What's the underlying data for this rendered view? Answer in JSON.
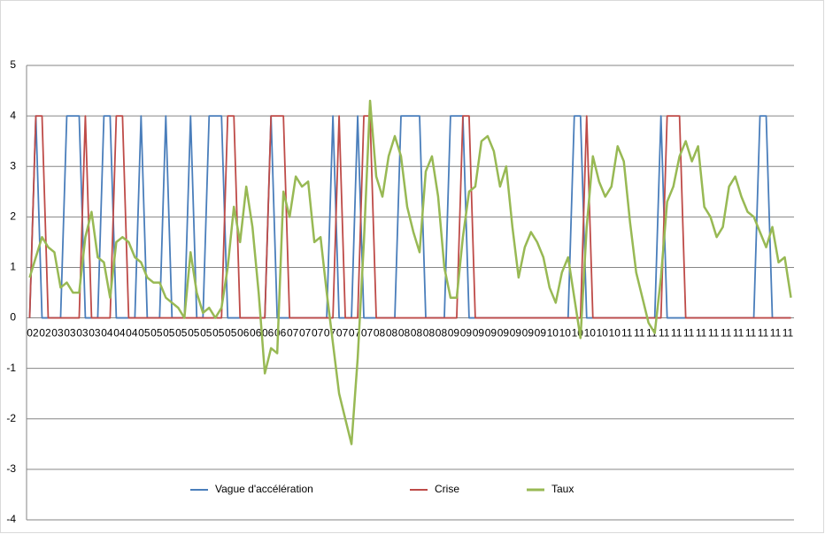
{
  "chart_data": {
    "type": "line",
    "categories": [
      "02",
      null,
      "02",
      null,
      "03",
      null,
      "03",
      null,
      "03",
      null,
      "03",
      null,
      "04",
      null,
      "04",
      null,
      "04",
      null,
      "05",
      null,
      "05",
      null,
      "05",
      null,
      "05",
      null,
      "05",
      null,
      "05",
      null,
      "05",
      null,
      "05",
      null,
      "06",
      null,
      "06",
      null,
      "06",
      null,
      "06",
      null,
      "07",
      null,
      "07",
      null,
      "07",
      null,
      "07",
      null,
      "07",
      null,
      "07",
      null,
      "07",
      null,
      "08",
      null,
      "08",
      null,
      "08",
      null,
      "08",
      null,
      "08",
      null,
      "08",
      null,
      "09",
      null,
      "09",
      null,
      "09",
      null,
      "09",
      null,
      "09",
      null,
      "09",
      null,
      "09",
      null,
      "09",
      null,
      "10",
      null,
      "10",
      null,
      "10",
      null,
      "10",
      null,
      "10",
      null,
      "10",
      null,
      "11",
      null,
      "11",
      null,
      "11",
      null,
      "11",
      null,
      "11",
      null,
      "11",
      null,
      "11",
      null,
      "11",
      null,
      "11",
      null,
      "11",
      null,
      "11",
      null,
      "11",
      null,
      "11",
      null,
      "11",
      null
    ],
    "series": [
      {
        "name": "Vague d'accélération",
        "color": "#4a7ebb",
        "values": [
          0,
          4,
          0,
          0,
          0,
          0,
          4,
          4,
          4,
          0,
          0,
          0,
          4,
          4,
          0,
          0,
          0,
          0,
          4,
          0,
          0,
          0,
          4,
          0,
          0,
          0,
          4,
          0,
          0,
          4,
          4,
          4,
          0,
          0,
          0,
          0,
          0,
          0,
          0,
          4,
          0,
          0,
          0,
          0,
          0,
          0,
          0,
          0,
          0,
          4,
          0,
          0,
          0,
          4,
          0,
          0,
          0,
          0,
          0,
          0,
          4,
          4,
          4,
          4,
          0,
          0,
          0,
          0,
          4,
          4,
          4,
          0,
          0,
          0,
          0,
          0,
          0,
          0,
          0,
          0,
          0,
          0,
          0,
          0,
          0,
          0,
          0,
          0,
          4,
          4,
          0,
          0,
          0,
          0,
          0,
          0,
          0,
          0,
          0,
          0,
          0,
          0,
          4,
          0,
          0,
          0,
          0,
          0,
          0,
          0,
          0,
          0,
          0,
          0,
          0,
          0,
          0,
          0,
          4,
          4,
          0,
          0,
          0,
          0
        ]
      },
      {
        "name": "Crise",
        "color": "#be4b48",
        "values": [
          0,
          4,
          4,
          0,
          0,
          0,
          0,
          0,
          0,
          4,
          0,
          0,
          0,
          0,
          4,
          4,
          0,
          0,
          0,
          0,
          0,
          0,
          0,
          0,
          0,
          0,
          0,
          0,
          0,
          0,
          0,
          0,
          4,
          4,
          0,
          0,
          0,
          0,
          0,
          4,
          4,
          4,
          0,
          0,
          0,
          0,
          0,
          0,
          0,
          0,
          4,
          0,
          0,
          0,
          4,
          4,
          0,
          0,
          0,
          0,
          0,
          0,
          0,
          0,
          0,
          0,
          0,
          0,
          0,
          0,
          4,
          4,
          0,
          0,
          0,
          0,
          0,
          0,
          0,
          0,
          0,
          0,
          0,
          0,
          0,
          0,
          0,
          0,
          0,
          0,
          4,
          0,
          0,
          0,
          0,
          0,
          0,
          0,
          0,
          0,
          0,
          0,
          0,
          4,
          4,
          4,
          0,
          0,
          0,
          0,
          0,
          0,
          0,
          0,
          0,
          0,
          0,
          0,
          0,
          0,
          0,
          0,
          0,
          0
        ]
      },
      {
        "name": "Taux",
        "color": "#98b954",
        "values": [
          0.8,
          1.2,
          1.6,
          1.4,
          1.3,
          0.6,
          0.7,
          0.5,
          0.5,
          1.6,
          2.1,
          1.2,
          1.1,
          0.4,
          1.5,
          1.6,
          1.5,
          1.2,
          1.1,
          0.8,
          0.7,
          0.7,
          0.4,
          0.3,
          0.2,
          0.0,
          1.3,
          0.5,
          0.1,
          0.2,
          0.0,
          0.2,
          1.0,
          2.2,
          1.5,
          2.6,
          1.8,
          0.5,
          -1.1,
          -0.6,
          -0.7,
          2.5,
          2.0,
          2.8,
          2.6,
          2.7,
          1.5,
          1.6,
          0.5,
          -0.5,
          -1.5,
          -2.0,
          -2.5,
          -0.8,
          1.5,
          4.3,
          2.8,
          2.4,
          3.2,
          3.6,
          3.2,
          2.2,
          1.7,
          1.3,
          2.9,
          3.2,
          2.4,
          1.0,
          0.4,
          0.4,
          1.6,
          2.5,
          2.6,
          3.5,
          3.6,
          3.3,
          2.6,
          3.0,
          1.8,
          0.8,
          1.4,
          1.7,
          1.5,
          1.2,
          0.6,
          0.3,
          0.9,
          1.2,
          0.4,
          -0.4,
          1.8,
          3.2,
          2.7,
          2.4,
          2.6,
          3.4,
          3.1,
          1.9,
          0.9,
          0.4,
          -0.1,
          -0.3,
          0.8,
          2.3,
          2.6,
          3.2,
          3.5,
          3.1,
          3.4,
          2.2,
          2.0,
          1.6,
          1.8,
          2.6,
          2.8,
          2.4,
          2.1,
          2.0,
          1.7,
          1.4,
          1.8,
          1.1,
          1.2,
          0.4
        ]
      }
    ],
    "ylim": [
      -4,
      5
    ],
    "yticks": [
      -4,
      -3,
      -2,
      -1,
      0,
      1,
      2,
      3,
      4,
      5
    ],
    "grid": true,
    "legend": "bottom"
  }
}
